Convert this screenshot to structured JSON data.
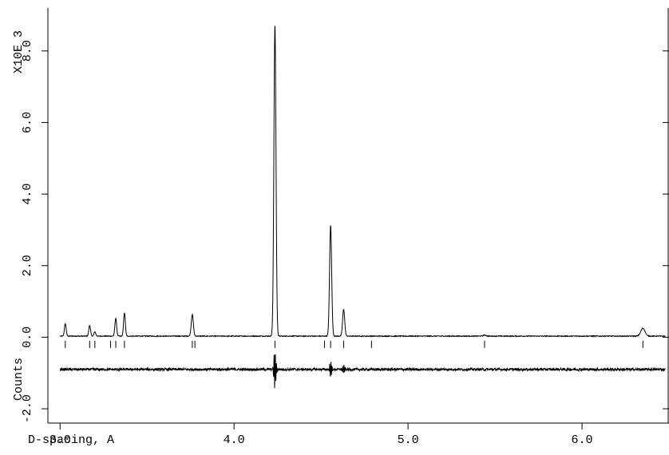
{
  "chart_data": {
    "type": "line",
    "title": "",
    "xlabel": "D-spacing, A",
    "ylabel": "Counts",
    "y_multiplier_label": "X10E 3",
    "xlim": [
      2.93,
      6.5
    ],
    "ylim": [
      -2.4,
      9.2
    ],
    "x_ticks": [
      3.0,
      4.0,
      5.0,
      6.0
    ],
    "x_tick_labels": [
      "3.0",
      "4.0",
      "5.0",
      "6.0"
    ],
    "y_ticks": [
      -2.0,
      0.0,
      2.0,
      4.0,
      6.0,
      8.0
    ],
    "y_tick_labels": [
      "-2.0",
      "0.0",
      "2.0",
      "4.0",
      "6.0",
      "8.0"
    ],
    "grid": false,
    "legend": "none",
    "baseline": 0.03,
    "peaks": [
      {
        "x": 3.03,
        "y": 0.35,
        "w": 0.005
      },
      {
        "x": 3.17,
        "y": 0.3,
        "w": 0.005
      },
      {
        "x": 3.2,
        "y": 0.12,
        "w": 0.005
      },
      {
        "x": 3.32,
        "y": 0.5,
        "w": 0.005
      },
      {
        "x": 3.37,
        "y": 0.65,
        "w": 0.005
      },
      {
        "x": 3.76,
        "y": 0.6,
        "w": 0.006
      },
      {
        "x": 4.235,
        "y": 8.7,
        "w": 0.006
      },
      {
        "x": 4.555,
        "y": 3.1,
        "w": 0.006
      },
      {
        "x": 4.63,
        "y": 0.75,
        "w": 0.006
      },
      {
        "x": 5.44,
        "y": 0.03,
        "w": 0.008
      },
      {
        "x": 6.35,
        "y": 0.22,
        "w": 0.012
      }
    ],
    "reflection_ticks": [
      3.03,
      3.17,
      3.2,
      3.29,
      3.32,
      3.37,
      3.76,
      3.775,
      4.235,
      4.52,
      4.555,
      4.63,
      4.79,
      5.44,
      6.35
    ],
    "difference": {
      "offset": -0.9,
      "noise": 0.035,
      "spikes": [
        {
          "x": 4.235,
          "amp": 0.55
        },
        {
          "x": 4.555,
          "amp": 0.2
        },
        {
          "x": 4.63,
          "amp": 0.1
        }
      ]
    }
  }
}
